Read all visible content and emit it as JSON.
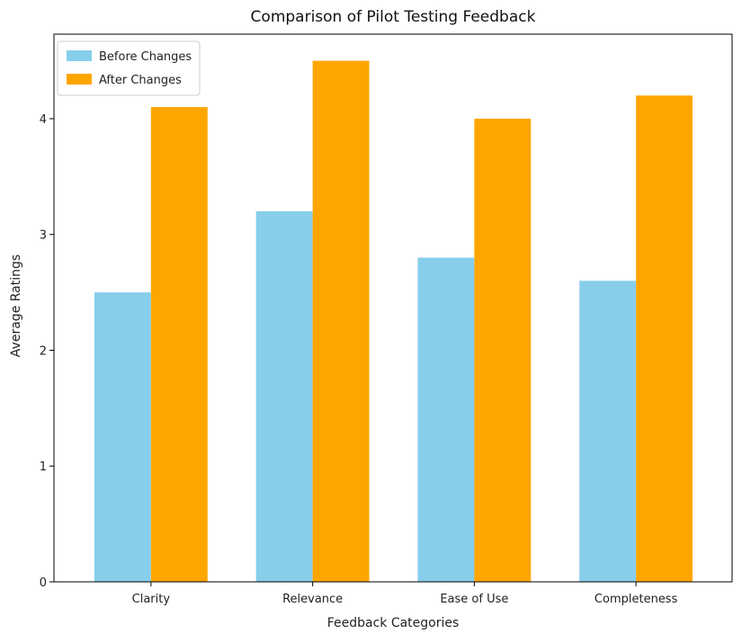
{
  "chart_data": {
    "type": "bar",
    "title": "Comparison of Pilot Testing Feedback",
    "xlabel": "Feedback Categories",
    "ylabel": "Average Ratings",
    "categories": [
      "Clarity",
      "Relevance",
      "Ease of Use",
      "Completeness"
    ],
    "series": [
      {
        "name": "Before Changes",
        "values": [
          2.5,
          3.2,
          2.8,
          2.6
        ],
        "color": "#87ceeb"
      },
      {
        "name": "After Changes",
        "values": [
          4.1,
          4.5,
          4.0,
          4.2
        ],
        "color": "#ffa500"
      }
    ],
    "ylim": [
      0,
      4.73
    ],
    "yticks": [
      0,
      1,
      2,
      3,
      4
    ],
    "grid": false,
    "legend_position": "top-left"
  }
}
